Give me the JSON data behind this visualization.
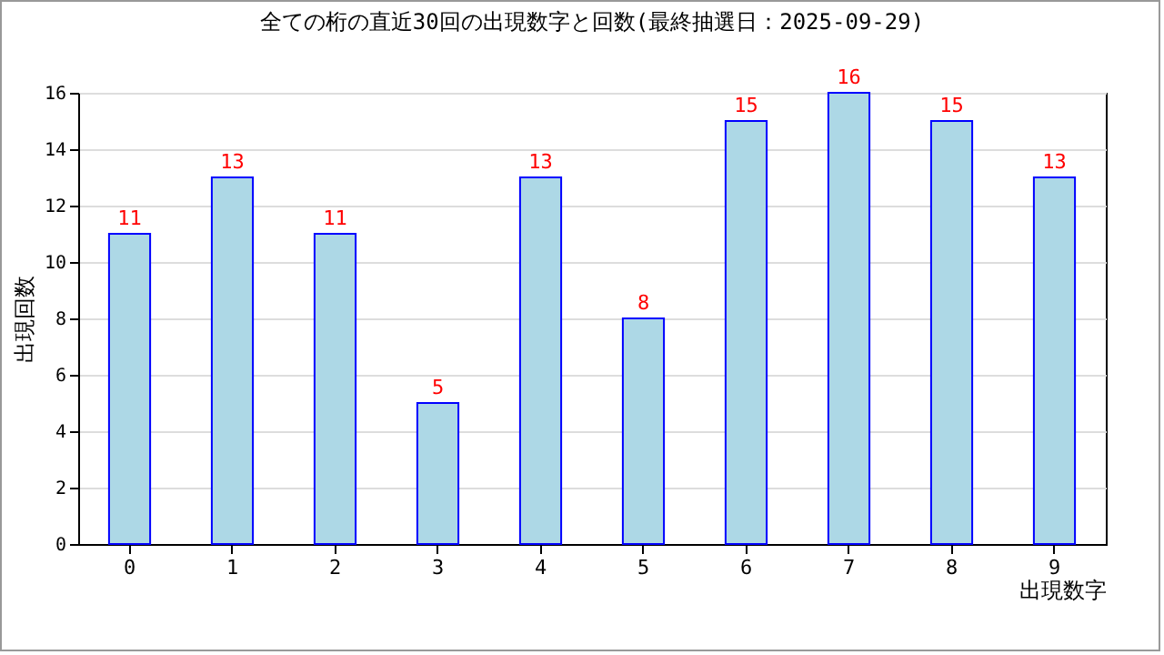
{
  "chart_data": {
    "type": "bar",
    "title": "全ての桁の直近30回の出現数字と回数(最終抽選日：2025-09-29)",
    "xlabel": "出現数字",
    "ylabel": "出現回数",
    "categories": [
      "0",
      "1",
      "2",
      "3",
      "4",
      "5",
      "6",
      "7",
      "8",
      "9"
    ],
    "values": [
      11,
      13,
      11,
      5,
      13,
      8,
      15,
      16,
      15,
      13
    ],
    "color": "#add8e6",
    "ylim": [
      0,
      16
    ],
    "yticks": [
      0,
      2,
      4,
      6,
      8,
      10,
      12,
      14,
      16
    ],
    "grid": "y",
    "data_labels": true
  }
}
